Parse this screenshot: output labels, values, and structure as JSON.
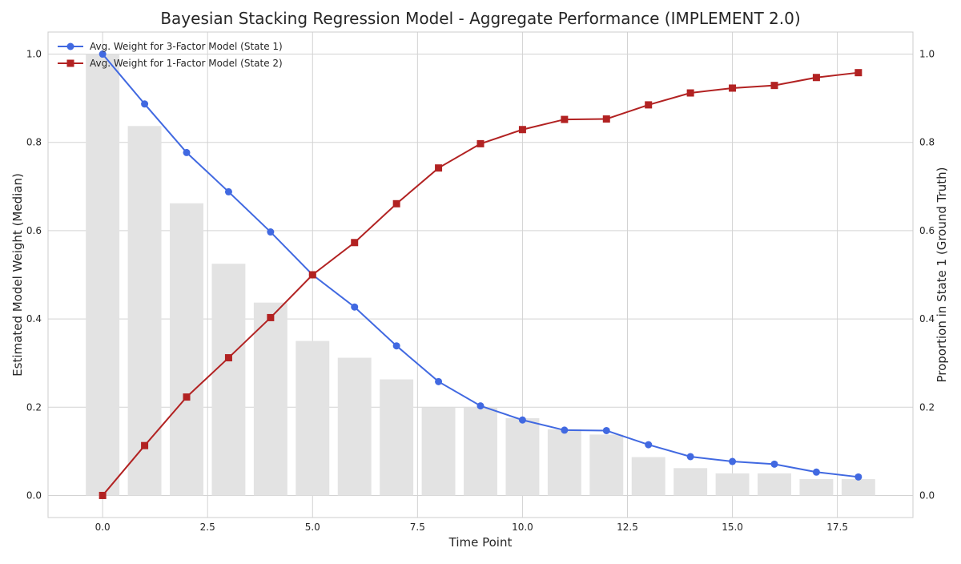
{
  "chart_data": {
    "type": "bar+line",
    "title": "Bayesian Stacking Regression Model - Aggregate Performance (IMPLEMENT 2.0)",
    "xlabel": "Time Point",
    "ylabel": "Estimated Model Weight (Median)",
    "y2label": "Proportion in State 1 (Ground Truth)",
    "xlim": [
      -1.3,
      19.3
    ],
    "ylim": [
      -0.05,
      1.05
    ],
    "y2lim": [
      -0.05,
      1.05
    ],
    "x_ticks": [
      "0.0",
      "2.5",
      "5.0",
      "7.5",
      "10.0",
      "12.5",
      "15.0",
      "17.5"
    ],
    "x_tick_values": [
      0,
      2.5,
      5,
      7.5,
      10,
      12.5,
      15,
      17.5
    ],
    "y_ticks": [
      "0.0",
      "0.2",
      "0.4",
      "0.6",
      "0.8",
      "1.0"
    ],
    "y_tick_values": [
      0,
      0.2,
      0.4,
      0.6,
      0.8,
      1.0
    ],
    "y2_ticks": [
      "0.0",
      "0.2",
      "0.4",
      "0.6",
      "0.8",
      "1.0"
    ],
    "grid": true,
    "legend_position": "top-left",
    "x": [
      0,
      1,
      2,
      3,
      4,
      5,
      6,
      7,
      8,
      9,
      10,
      11,
      12,
      13,
      14,
      15,
      16,
      17,
      18
    ],
    "bars": {
      "values": [
        1.0,
        0.837,
        0.662,
        0.525,
        0.437,
        0.35,
        0.312,
        0.263,
        0.2,
        0.2,
        0.175,
        0.15,
        0.138,
        0.087,
        0.062,
        0.05,
        0.05,
        0.037,
        0.037
      ],
      "color": "#e3e3e3"
    },
    "series": [
      {
        "name": "Avg. Weight for 3-Factor Model (State 1)",
        "color": "#4169e1",
        "marker": "circle",
        "values": [
          1.0,
          0.887,
          0.777,
          0.688,
          0.597,
          0.5,
          0.427,
          0.339,
          0.258,
          0.203,
          0.171,
          0.148,
          0.147,
          0.115,
          0.088,
          0.077,
          0.071,
          0.053,
          0.042
        ]
      },
      {
        "name": "Avg. Weight for 1-Factor Model (State 2)",
        "color": "#b22222",
        "marker": "square",
        "values": [
          0.0,
          0.113,
          0.223,
          0.312,
          0.403,
          0.5,
          0.573,
          0.661,
          0.742,
          0.797,
          0.829,
          0.852,
          0.853,
          0.885,
          0.912,
          0.923,
          0.929,
          0.947,
          0.958
        ]
      }
    ]
  }
}
